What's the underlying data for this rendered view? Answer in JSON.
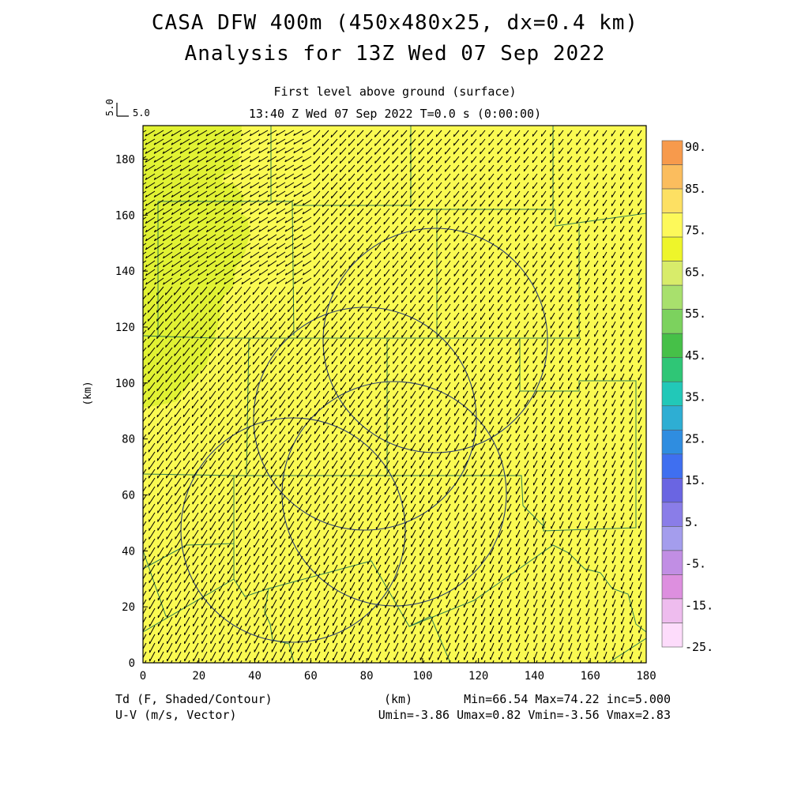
{
  "header": {
    "title_line1": "CASA DFW 400m (450x480x25, dx=0.4 km)",
    "title_line2": "Analysis for 13Z Wed 07 Sep 2022",
    "subtitle_level": "First level above ground (surface)",
    "subtitle_time": "13:40 Z Wed 07 Sep 2022    T=0.0 s (0:00:00)"
  },
  "vector_scale": {
    "label_vertical": "5.0",
    "label_horizontal": "5.0"
  },
  "axes": {
    "xlabel": "(km)",
    "ylabel": "(km)",
    "xlim": [
      0,
      180
    ],
    "ylim": [
      0,
      192
    ],
    "xticks": [
      "0",
      "20",
      "40",
      "60",
      "80",
      "100",
      "120",
      "140",
      "160",
      "180"
    ],
    "yticks": [
      "0",
      "20",
      "40",
      "60",
      "80",
      "100",
      "120",
      "140",
      "160",
      "180"
    ]
  },
  "colorbar": {
    "labels": [
      "90.",
      "85.",
      "75.",
      "65.",
      "55.",
      "45.",
      "35.",
      "25.",
      "15.",
      "5.",
      "-5.",
      "-15.",
      "-25."
    ],
    "colors_top_to_bottom": [
      "#f79a4c",
      "#fbbd5e",
      "#fde063",
      "#fdf95a",
      "#eef52a",
      "#d8ec6a",
      "#a8e06d",
      "#7cd25e",
      "#46c048",
      "#2fc676",
      "#22c8b8",
      "#2eaed3",
      "#2f8de0",
      "#3f6ff0",
      "#6a65e2",
      "#8a7de8",
      "#a49ded",
      "#c18ee4",
      "#dd8fdf",
      "#eebcee",
      "#fddcfb"
    ]
  },
  "footer": {
    "left_line1": "Td (F, Shaded/Contour)",
    "left_line2": "U-V (m/s, Vector)",
    "center_unit": "(km)",
    "stats_line1": "Min=66.54 Max=74.22 inc=5.000",
    "stats_line2": "Umin=-3.86 Umax=0.82 Vmin=-3.56 Vmax=2.83"
  },
  "map": {
    "field_colors": {
      "base": "#fafa52",
      "green_region": "#e1f233",
      "boundary_line": "#2f7f4f"
    },
    "radar_range_rings_count": 4
  }
}
